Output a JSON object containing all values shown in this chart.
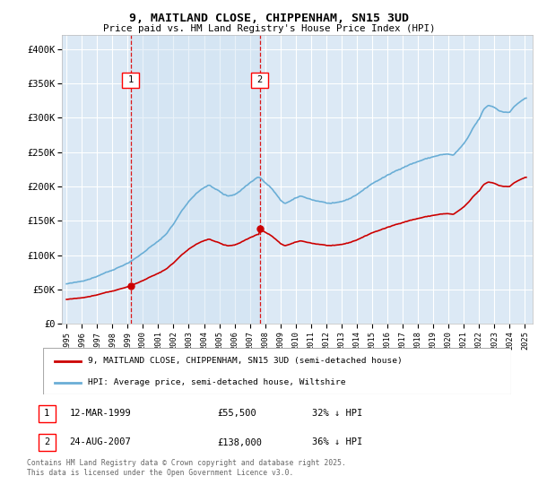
{
  "title": "9, MAITLAND CLOSE, CHIPPENHAM, SN15 3UD",
  "subtitle": "Price paid vs. HM Land Registry's House Price Index (HPI)",
  "background_color": "#ffffff",
  "plot_bg_color": "#dce9f5",
  "grid_color": "#ffffff",
  "hpi_color": "#6aaed6",
  "price_color": "#cc0000",
  "sale1_x": 1999.21,
  "sale1_y": 55500,
  "sale2_x": 2007.65,
  "sale2_y": 138000,
  "legend_label1": "9, MAITLAND CLOSE, CHIPPENHAM, SN15 3UD (semi-detached house)",
  "legend_label2": "HPI: Average price, semi-detached house, Wiltshire",
  "footer": "Contains HM Land Registry data © Crown copyright and database right 2025.\nThis data is licensed under the Open Government Licence v3.0.",
  "ylim": [
    0,
    420000
  ],
  "xlim": [
    1994.7,
    2025.5
  ],
  "yticks": [
    0,
    50000,
    100000,
    150000,
    200000,
    250000,
    300000,
    350000,
    400000
  ],
  "ytick_labels": [
    "£0",
    "£50K",
    "£100K",
    "£150K",
    "£200K",
    "£250K",
    "£300K",
    "£350K",
    "£400K"
  ]
}
